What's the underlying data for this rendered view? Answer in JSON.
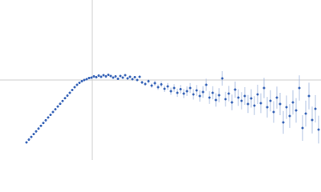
{
  "chart_data": {
    "type": "scatter",
    "color": "#3a66b8",
    "error_color": "#9fb4dc",
    "xlim": [
      0,
      400
    ],
    "ylim": [
      0,
      200
    ],
    "vlines": [
      115
    ],
    "hlines": [
      100
    ],
    "x": [
      33,
      36,
      39,
      42,
      45,
      48,
      51,
      54,
      57,
      60,
      63,
      66,
      69,
      72,
      75,
      78,
      81,
      84,
      87,
      90,
      93,
      96,
      99,
      102,
      105,
      108,
      111,
      114,
      117,
      120,
      123,
      126,
      129,
      132,
      135,
      138,
      141,
      144,
      147,
      150,
      153,
      156,
      159,
      162,
      165,
      168,
      171,
      174,
      177,
      181,
      185,
      189,
      193,
      197,
      201,
      205,
      209,
      213,
      217,
      221,
      225,
      229,
      233,
      237,
      241,
      245,
      249,
      253,
      257,
      261,
      265,
      269,
      273,
      277,
      281,
      285,
      289,
      293,
      297,
      301,
      305,
      309,
      313,
      317,
      321,
      325,
      329,
      333,
      337,
      341,
      345,
      349,
      353,
      357,
      361,
      365,
      369,
      373,
      377,
      381,
      385,
      389,
      393,
      397
    ],
    "values": [
      22,
      25.5,
      28.9,
      32.4,
      35.8,
      39.3,
      42.7,
      46.2,
      49.6,
      53.1,
      56.5,
      60,
      63.4,
      66.9,
      70.3,
      73.8,
      77.2,
      80.5,
      84,
      87.5,
      91,
      94,
      96.5,
      98.5,
      100,
      101,
      102.5,
      103,
      104.5,
      103.5,
      105.5,
      104,
      106,
      104.5,
      106.5,
      105,
      103,
      104.5,
      101.5,
      105,
      103,
      106,
      102,
      104,
      101,
      103.5,
      100,
      104,
      97,
      95,
      98.5,
      93,
      96,
      91,
      94.5,
      89,
      92,
      86,
      90,
      84,
      88.5,
      83,
      86,
      90,
      82,
      87,
      80,
      85,
      94,
      78,
      84,
      75,
      81,
      102,
      76,
      83,
      72,
      88,
      78,
      74,
      80,
      70,
      77,
      68,
      82,
      71,
      90,
      66,
      74,
      60,
      78,
      70,
      47,
      66,
      55,
      72,
      62,
      90,
      40,
      58,
      80,
      50,
      64,
      38
    ],
    "errors": [
      0.4,
      0.4,
      0.4,
      0.4,
      0.4,
      0.4,
      0.4,
      0.4,
      0.4,
      0.4,
      0.4,
      0.4,
      0.4,
      0.4,
      0.4,
      0.4,
      0.4,
      0.4,
      0.4,
      0.4,
      0.4,
      0.4,
      0.4,
      1.5,
      1.5,
      1.5,
      1.5,
      1.5,
      1.5,
      1.5,
      1.5,
      1.5,
      1.5,
      1.5,
      1.5,
      1.5,
      1.5,
      1.5,
      1.5,
      1.5,
      1.5,
      1.5,
      1.5,
      1.5,
      1.5,
      1.5,
      1.5,
      1.5,
      2,
      2.3,
      2.6,
      2.8,
      3.1,
      3.4,
      3.7,
      4,
      4.2,
      4.5,
      4.8,
      5.1,
      5.4,
      5.6,
      5.9,
      6.2,
      6.5,
      6.8,
      7,
      7.3,
      7.6,
      7.9,
      8.2,
      8.4,
      8.7,
      9,
      9.3,
      9.6,
      9.8,
      10.1,
      10.4,
      10.7,
      11,
      11.2,
      11.5,
      11.8,
      12.1,
      12.4,
      12.6,
      12.9,
      13.2,
      13.5,
      13.8,
      14,
      14.3,
      14.6,
      14.9,
      15.2,
      15.4,
      15.7,
      16,
      16.3,
      16.6,
      16.8,
      17.1,
      17.4
    ]
  }
}
